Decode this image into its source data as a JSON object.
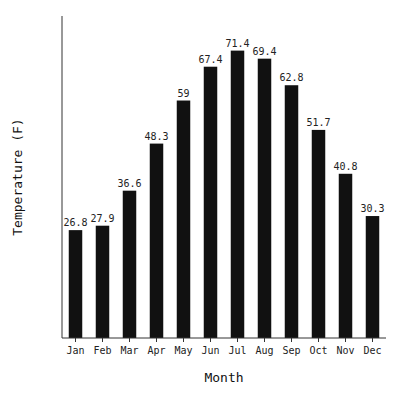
{
  "chart_data": {
    "type": "bar",
    "categories": [
      "Jan",
      "Feb",
      "Mar",
      "Apr",
      "May",
      "Jun",
      "Jul",
      "Aug",
      "Sep",
      "Oct",
      "Nov",
      "Dec"
    ],
    "values": [
      26.8,
      27.9,
      36.6,
      48.3,
      59.0,
      67.4,
      71.4,
      69.4,
      62.8,
      51.7,
      40.8,
      30.3
    ],
    "color": "#111111",
    "x_label": "Month",
    "y_label": "Temperature (F)",
    "ylim": [
      0,
      80
    ],
    "yticks": [],
    "data_labels": true,
    "tick_labels": "x",
    "grid": false
  }
}
